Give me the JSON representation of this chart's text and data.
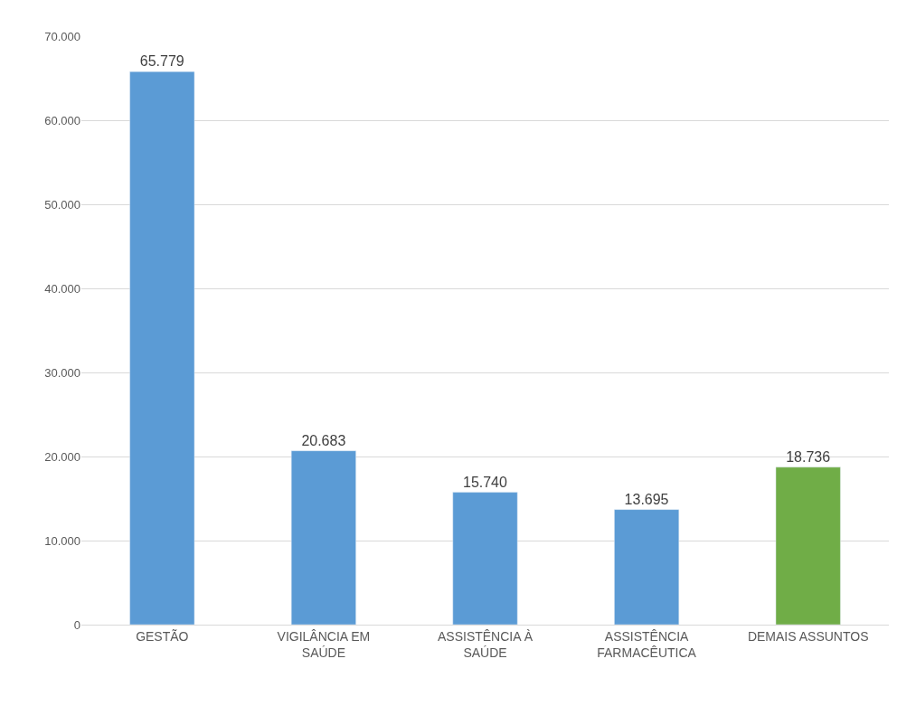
{
  "chart_data": {
    "type": "bar",
    "categories": [
      "GESTÃO",
      "VIGILÂNCIA EM SAÚDE",
      "ASSISTÊNCIA À SAÚDE",
      "ASSISTÊNCIA FARMACÊUTICA",
      "DEMAIS ASSUNTOS"
    ],
    "values": [
      65779,
      20683,
      15740,
      13695,
      18736
    ],
    "colors": [
      "#5b9bd5",
      "#5b9bd5",
      "#5b9bd5",
      "#5b9bd5",
      "#70ad47"
    ],
    "value_labels": [
      "65.779",
      "20.683",
      "15.740",
      "13.695",
      "18.736"
    ],
    "ylim": [
      0,
      70000
    ],
    "yticks": [
      0,
      {
        "value": 10000,
        "label": "10.000"
      },
      {
        "value": 20000,
        "label": "20.000"
      },
      {
        "value": 30000,
        "label": "30.000"
      },
      {
        "value": 40000,
        "label": "40.000"
      },
      {
        "value": 50000,
        "label": "50.000"
      },
      {
        "value": 60000,
        "label": "60.000"
      },
      {
        "value": 70000,
        "label": "70.000"
      }
    ],
    "grid": "y"
  }
}
